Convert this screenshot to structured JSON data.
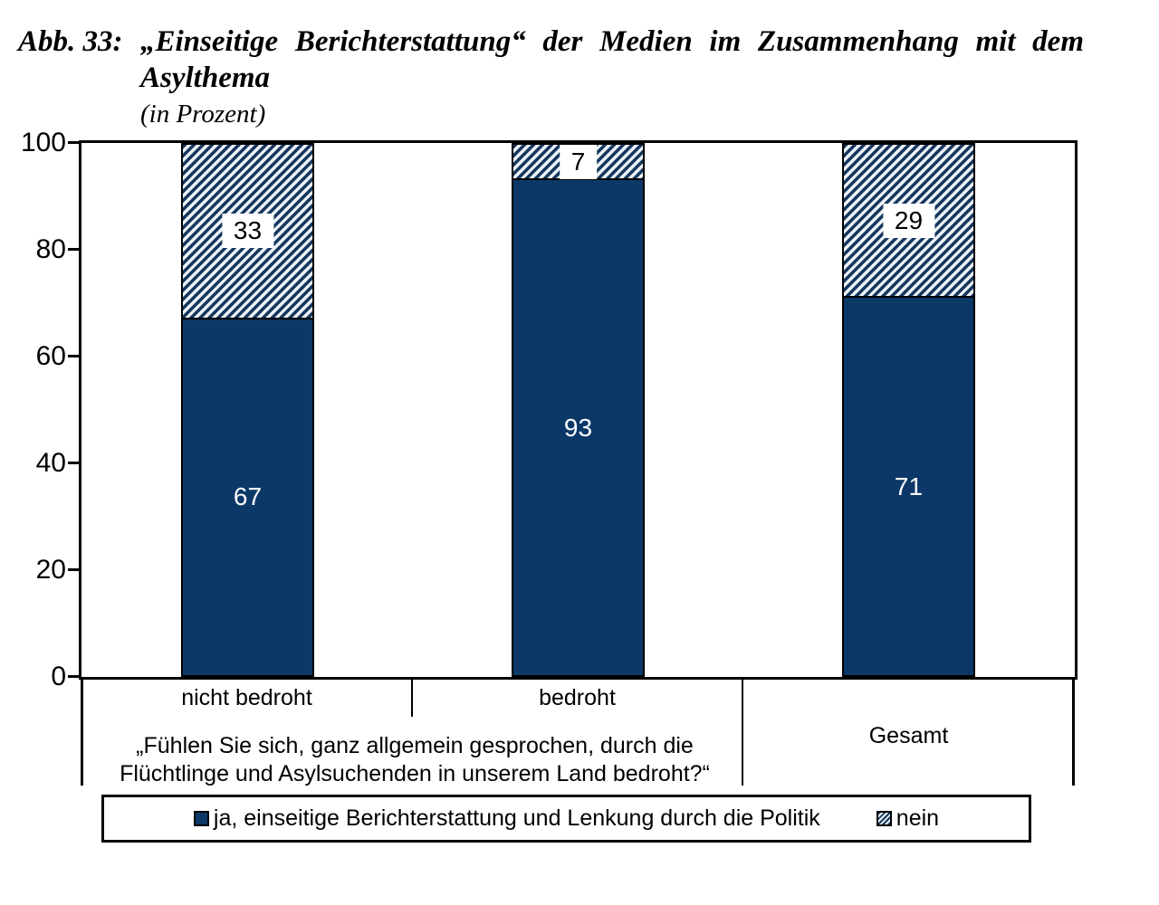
{
  "figure": {
    "label": "Abb. 33:",
    "title_line1": "„Einseitige Berichterstattung“ der Medien im Zusammenhang mit dem",
    "title_line2": "Asylthema",
    "subtitle": "(in Prozent)"
  },
  "colors": {
    "bar_primary": "#0C3868",
    "hatch_dark": "#17375E",
    "hatch_light": "#ECF2F8",
    "axis": "#000000",
    "background": "#FFFFFF"
  },
  "chart_data": {
    "type": "bar",
    "stacked": true,
    "title": "„Einseitige Berichterstattung“ der Medien im Zusammenhang mit dem Asylthema",
    "subtitle": "(in Prozent)",
    "categories": [
      "nicht bedroht",
      "bedroht",
      "Gesamt"
    ],
    "series": [
      {
        "name": "ja, einseitige Berichterstattung und Lenkung durch die Politik",
        "values": [
          67,
          93,
          71
        ],
        "pattern": "solid",
        "color": "#0C3868"
      },
      {
        "name": "nein",
        "values": [
          33,
          7,
          29
        ],
        "pattern": "diagonal-hatch",
        "color": "#17375E"
      }
    ],
    "ylim": [
      0,
      100
    ],
    "ytick_labels": [
      "100",
      "80",
      "60",
      "40",
      "20",
      "0"
    ],
    "grid": false,
    "legend_position": "bottom",
    "x_axis_group_note": "Question label spans the first two categories"
  },
  "x_axis": {
    "question_line1": "„Fühlen Sie sich, ganz allgemein gesprochen, durch die",
    "question_line2": "Flüchtlinge und Asylsuchenden in unserem Land bedroht?“"
  }
}
